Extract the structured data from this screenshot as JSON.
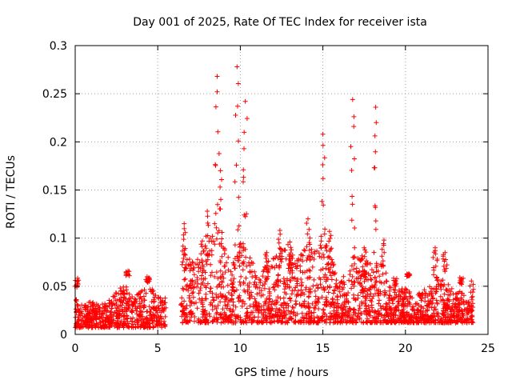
{
  "chart_data": {
    "type": "scatter",
    "title": "Day 001 of 2025, Rate Of TEC Index for receiver ista",
    "xlabel": "GPS time / hours",
    "ylabel": "ROTI / TECUs",
    "xlim": [
      0,
      25
    ],
    "ylim": [
      0,
      0.3
    ],
    "x_ticks": [
      "0",
      "5",
      "10",
      "15",
      "20",
      "25"
    ],
    "y_ticks": [
      "0",
      "0.05",
      "0.1",
      "0.15",
      "0.2",
      "0.25",
      "0.3"
    ],
    "grid": true,
    "marker": "+",
    "color": "#ff0000",
    "data_gap_hours": [
      5.5,
      6.4
    ],
    "series": [
      {
        "name": "ROTI",
        "peaks": [
          {
            "x": 0.1,
            "y": 0.049
          },
          {
            "x": 3.2,
            "y": 0.066
          },
          {
            "x": 4.4,
            "y": 0.054
          },
          {
            "x": 6.6,
            "y": 0.115
          },
          {
            "x": 7.7,
            "y": 0.097
          },
          {
            "x": 8.0,
            "y": 0.128
          },
          {
            "x": 8.6,
            "y": 0.268
          },
          {
            "x": 8.8,
            "y": 0.17
          },
          {
            "x": 9.8,
            "y": 0.278
          },
          {
            "x": 10.3,
            "y": 0.242
          },
          {
            "x": 11.6,
            "y": 0.085
          },
          {
            "x": 12.4,
            "y": 0.108
          },
          {
            "x": 13.0,
            "y": 0.096
          },
          {
            "x": 14.1,
            "y": 0.12
          },
          {
            "x": 15.0,
            "y": 0.208
          },
          {
            "x": 15.4,
            "y": 0.107
          },
          {
            "x": 16.8,
            "y": 0.244
          },
          {
            "x": 17.5,
            "y": 0.09
          },
          {
            "x": 18.2,
            "y": 0.236
          },
          {
            "x": 18.7,
            "y": 0.098
          },
          {
            "x": 19.4,
            "y": 0.05
          },
          {
            "x": 20.2,
            "y": 0.063
          },
          {
            "x": 21.8,
            "y": 0.09
          },
          {
            "x": 22.4,
            "y": 0.085
          },
          {
            "x": 23.4,
            "y": 0.052
          },
          {
            "x": 24.0,
            "y": 0.03
          }
        ],
        "envelope": [
          {
            "x": 0.0,
            "y": 0.04
          },
          {
            "x": 0.5,
            "y": 0.03
          },
          {
            "x": 1.0,
            "y": 0.035
          },
          {
            "x": 1.5,
            "y": 0.03
          },
          {
            "x": 2.0,
            "y": 0.035
          },
          {
            "x": 2.5,
            "y": 0.045
          },
          {
            "x": 3.0,
            "y": 0.055
          },
          {
            "x": 3.5,
            "y": 0.045
          },
          {
            "x": 4.0,
            "y": 0.045
          },
          {
            "x": 4.5,
            "y": 0.05
          },
          {
            "x": 5.0,
            "y": 0.04
          },
          {
            "x": 5.4,
            "y": 0.04
          },
          {
            "x": 6.5,
            "y": 0.09
          },
          {
            "x": 7.0,
            "y": 0.08
          },
          {
            "x": 7.5,
            "y": 0.08
          },
          {
            "x": 8.0,
            "y": 0.1
          },
          {
            "x": 8.5,
            "y": 0.12
          },
          {
            "x": 9.0,
            "y": 0.1
          },
          {
            "x": 9.5,
            "y": 0.07
          },
          {
            "x": 10.0,
            "y": 0.1
          },
          {
            "x": 10.5,
            "y": 0.09
          },
          {
            "x": 11.0,
            "y": 0.06
          },
          {
            "x": 11.5,
            "y": 0.07
          },
          {
            "x": 12.0,
            "y": 0.08
          },
          {
            "x": 12.5,
            "y": 0.09
          },
          {
            "x": 13.0,
            "y": 0.085
          },
          {
            "x": 13.5,
            "y": 0.08
          },
          {
            "x": 14.0,
            "y": 0.095
          },
          {
            "x": 14.5,
            "y": 0.09
          },
          {
            "x": 15.0,
            "y": 0.1
          },
          {
            "x": 15.5,
            "y": 0.085
          },
          {
            "x": 16.0,
            "y": 0.06
          },
          {
            "x": 16.5,
            "y": 0.07
          },
          {
            "x": 17.0,
            "y": 0.09
          },
          {
            "x": 17.5,
            "y": 0.075
          },
          {
            "x": 18.0,
            "y": 0.08
          },
          {
            "x": 18.5,
            "y": 0.075
          },
          {
            "x": 19.0,
            "y": 0.05
          },
          {
            "x": 19.5,
            "y": 0.045
          },
          {
            "x": 20.0,
            "y": 0.05
          },
          {
            "x": 20.5,
            "y": 0.04
          },
          {
            "x": 21.0,
            "y": 0.045
          },
          {
            "x": 21.5,
            "y": 0.05
          },
          {
            "x": 22.0,
            "y": 0.065
          },
          {
            "x": 22.5,
            "y": 0.055
          },
          {
            "x": 23.0,
            "y": 0.045
          },
          {
            "x": 23.5,
            "y": 0.045
          },
          {
            "x": 24.0,
            "y": 0.03
          }
        ]
      }
    ]
  }
}
